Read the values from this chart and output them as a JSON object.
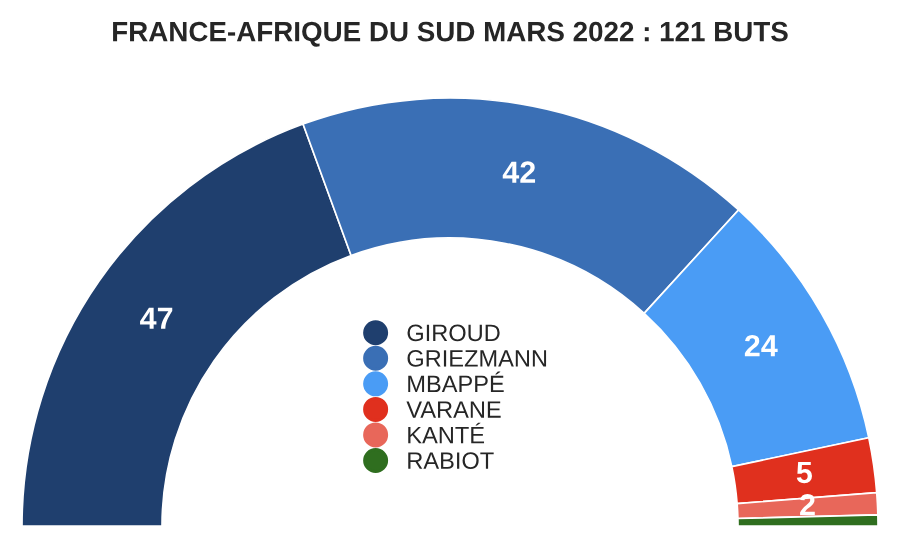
{
  "chart_data": {
    "type": "donut",
    "title": "FRANCE-AFRIQUE DU SUD MARS 2022 : 121 BUTS",
    "categories": [
      "GIROUD",
      "GRIEZMANN",
      "MBAPPÉ",
      "VARANE",
      "KANTÉ",
      "RABIOT"
    ],
    "values": [
      47,
      42,
      24,
      5,
      2,
      1
    ],
    "value_labels": [
      "47",
      "42",
      "24",
      "5",
      "2",
      null
    ],
    "colors": [
      "#1f3f6e",
      "#3a6fb5",
      "#4a9cf5",
      "#e0301e",
      "#e8675a",
      "#2f6e1f"
    ],
    "legend": "bottom"
  }
}
